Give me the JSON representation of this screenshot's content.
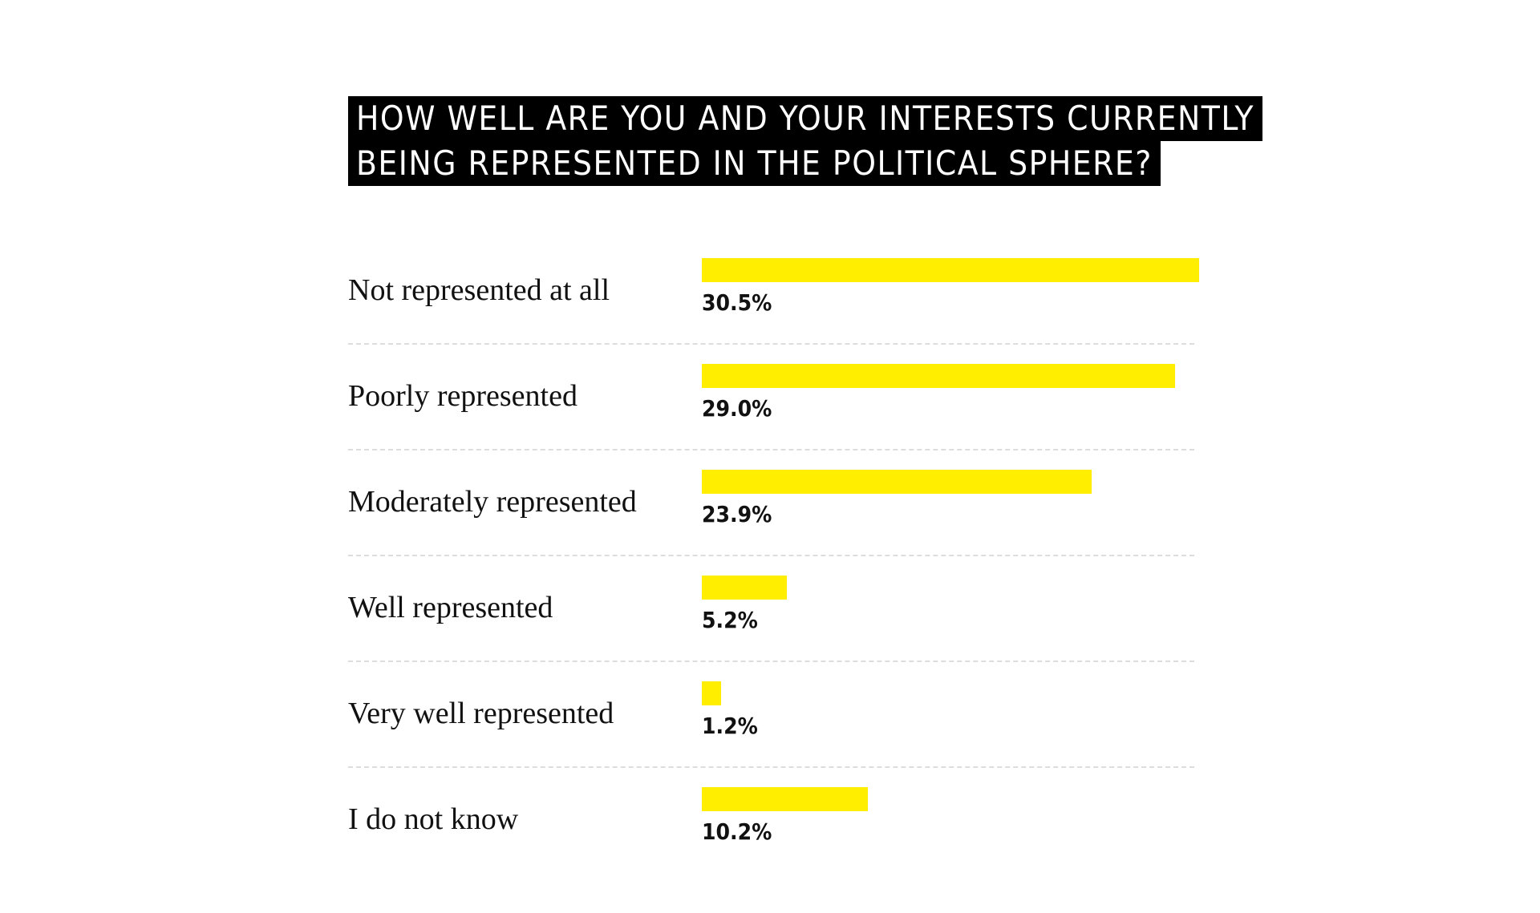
{
  "chart_data": {
    "type": "bar",
    "orientation": "horizontal",
    "title_lines": [
      "HOW WELL ARE YOU AND YOUR INTERESTS CURRENTLY",
      "BEING REPRESENTED IN THE POLITICAL SPHERE?"
    ],
    "categories": [
      "Not represented at all",
      "Poorly represented",
      "Moderately represented",
      "Well represented",
      "Very well represented",
      "I do not know"
    ],
    "values": [
      30.5,
      29.0,
      23.9,
      5.2,
      1.2,
      10.2
    ],
    "value_labels": [
      "30.5%",
      "29.0%",
      "23.9%",
      "5.2%",
      "1.2%",
      "10.2%"
    ],
    "unit": "%",
    "xlim": [
      0,
      30.5
    ],
    "bar_color": "#ffee00",
    "grid": false,
    "legend": "none"
  }
}
